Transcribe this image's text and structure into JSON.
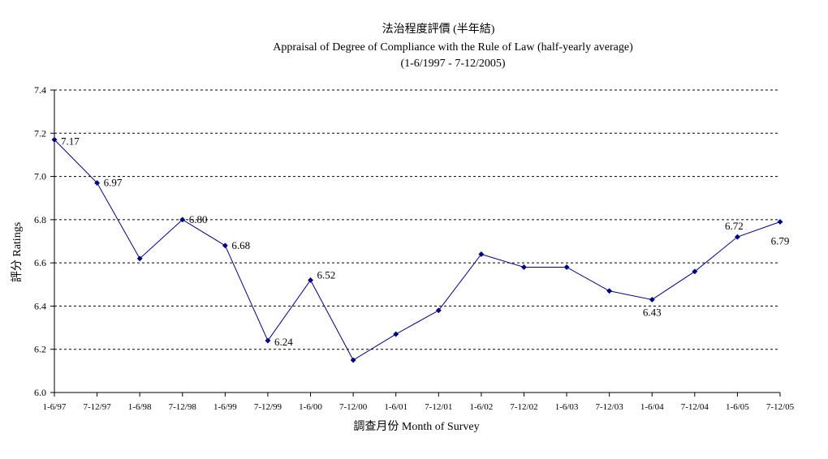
{
  "chart_data": {
    "type": "line",
    "title": "法治程度評價 (半年結)",
    "subtitle": "Appraisal of Degree of Compliance with the Rule of Law (half-yearly average)",
    "period": "(1-6/1997 - 7-12/2005)",
    "xlabel": "調查月份 Month of Survey",
    "ylabel": "評分 Ratings",
    "ylim": [
      6.0,
      7.4
    ],
    "yticks": [
      "6.0",
      "6.2",
      "6.4",
      "6.6",
      "6.8",
      "7.0",
      "7.2",
      "7.4"
    ],
    "grid": true,
    "categories": [
      "1-6/97",
      "7-12/97",
      "1-6/98",
      "7-12/98",
      "1-6/99",
      "7-12/99",
      "1-6/00",
      "7-12/00",
      "1-6/01",
      "7-12/01",
      "1-6/02",
      "7-12/02",
      "1-6/03",
      "7-12/03",
      "1-6/04",
      "7-12/04",
      "1-6/05",
      "7-12/05"
    ],
    "series": [
      {
        "values": [
          7.17,
          6.97,
          6.62,
          6.8,
          6.68,
          6.24,
          6.52,
          6.15,
          6.27,
          6.38,
          6.64,
          6.58,
          6.58,
          6.47,
          6.43,
          6.56,
          6.72,
          6.79
        ],
        "color": "#000080"
      }
    ],
    "data_labels": [
      {
        "index": 0,
        "text": "7.17"
      },
      {
        "index": 1,
        "text": "6.97"
      },
      {
        "index": 3,
        "text": "6.80"
      },
      {
        "index": 4,
        "text": "6.68"
      },
      {
        "index": 5,
        "text": "6.24"
      },
      {
        "index": 6,
        "text": "6.52"
      },
      {
        "index": 14,
        "text": "6.43"
      },
      {
        "index": 16,
        "text": "6.72"
      },
      {
        "index": 17,
        "text": "6.79"
      }
    ]
  }
}
